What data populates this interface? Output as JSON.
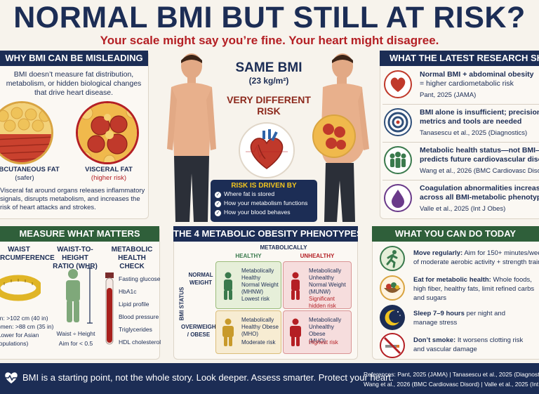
{
  "header": {
    "title": "NORMAL BMI BUT STILL AT RISK?",
    "subtitle": "Your scale might say you’re fine. Your heart might disagree."
  },
  "why_bmi": {
    "heading": "WHY BMI CAN BE MISLEADING",
    "intro": "BMI doesn’t measure fat distribution, metabolism, or hidden biological changes that drive heart disease.",
    "subcutaneous_label": "SUBCUTANEOUS FAT",
    "subcutaneous_note": "(safer)",
    "visceral_label": "VISCERAL FAT",
    "visceral_note": "(higher risk)",
    "footer_text": "Visceral fat around organs releases inflammatory signals, disrupts metabolism, and increases the risk of heart attacks and strokes."
  },
  "center": {
    "same_bmi": "SAME BMI",
    "bmi_value": "(23 kg/m²)",
    "very_different": "VERY DIFFERENT",
    "risk": "RISK",
    "risk_box_title": "RISK IS DRIVEN BY",
    "risk_items": [
      "Where fat is stored",
      "How your metabolism functions",
      "How your blood behaves"
    ]
  },
  "research": {
    "heading": "WHAT THE LATEST RESEARCH SHOWS",
    "items": [
      {
        "title1": "Normal BMI + abdominal obesity",
        "title2": "= higher cardiometabolic risk",
        "cite": "Pant, 2025 (JAMA)",
        "icon": "heart-icon"
      },
      {
        "title1": "BMI alone is insufficient; precision",
        "title2": "metrics and tools are needed",
        "cite": "Tanasescu et al., 2025 (Diagnostics)",
        "icon": "target-icon"
      },
      {
        "title1": "Metabolic health status—not BMI—",
        "title2": "predicts future cardiovascular disease",
        "cite": "Wang et al., 2026 (BMC Cardiovasc Disord)",
        "icon": "people-icon"
      },
      {
        "title1": "Coagulation abnormalities increase risk",
        "title2": "across all BMI-metabolic phenotypes",
        "cite": "Valle et al., 2025 (Int J Obes)",
        "icon": "blood-drop-icon"
      }
    ]
  },
  "measure": {
    "heading": "MEASURE WHAT MATTERS",
    "waist_title1": "WAIST",
    "waist_title2": "CIRCUMFERENCE",
    "waist_men": "Men: >102 cm (40 in)",
    "waist_women": "Women: >88 cm (35 in)",
    "waist_lower": "(Lower for Asian",
    "waist_pop": "populations)",
    "whr_title1": "WAIST-TO-HEIGHT",
    "whr_title2": "RATIO (WHR)",
    "whr_formula": "Waist ÷ Height",
    "whr_aim": "Aim for < 0.5",
    "metabolic_title1": "METABOLIC",
    "metabolic_title2": "HEALTH CHECK",
    "tests": [
      "Fasting glucose",
      "HbA1c",
      "Lipid profile",
      "Blood pressure",
      "Triglycerides",
      "HDL cholesterol"
    ]
  },
  "phenotypes": {
    "heading": "THE 4 METABOLIC OBESITY PHENOTYPES",
    "axis_top": "METABOLICALLY",
    "healthy": "HEALTHY",
    "unhealthy": "UNHEALTHY",
    "bmi_status": "BMI STATUS",
    "normal_weight1": "NORMAL",
    "normal_weight2": "WEIGHT",
    "overweight1": "OVERWEIGHT",
    "overweight2": "/ OBESE",
    "cells": [
      {
        "l1": "Metabolically",
        "l2": "Healthy",
        "l3": "Normal Weight",
        "abbr": "(MHNW)",
        "r1": "Lowest risk",
        "r2": "",
        "bg": "#e6efd9",
        "border": "#9bbb7a",
        "figure": "#3a7a4d",
        "riskcolor": "#1c2d55"
      },
      {
        "l1": "Metabolically",
        "l2": "Unhealthy",
        "l3": "Normal Weight",
        "abbr": "(MUNW)",
        "r1": "Significant",
        "r2": "hidden risk",
        "bg": "#f6dddd",
        "border": "#d99494",
        "figure": "#b41f24",
        "riskcolor": "#b41f24"
      },
      {
        "l1": "Metabolically",
        "l2": "Healthy Obese",
        "l3": "(MHO)",
        "abbr": "",
        "r1": "Moderate risk",
        "r2": "",
        "bg": "#f7ecd2",
        "border": "#dbbd7a",
        "figure": "#c89a2b",
        "riskcolor": "#1c2d55"
      },
      {
        "l1": "Metabolically",
        "l2": "Unhealthy Obese",
        "l3": "(MUO)",
        "abbr": "",
        "r1": "Highest risk",
        "r2": "",
        "bg": "#f6dddd",
        "border": "#d99494",
        "figure": "#b41f24",
        "riskcolor": "#b41f24"
      }
    ]
  },
  "actions": {
    "heading": "WHAT YOU CAN DO TODAY",
    "items": [
      {
        "bold": "Move regularly:",
        "rest1": " Aim for 150+ minutes/week",
        "rest2": "of moderate aerobic activity + strength training",
        "icon": "running-icon"
      },
      {
        "bold": "Eat for metabolic health:",
        "rest1": " Whole foods,",
        "rest2": "high fiber, healthy fats, limit refined carbs",
        "rest3": "and sugars",
        "icon": "food-bowl-icon"
      },
      {
        "bold": "Sleep 7–9 hours",
        "rest1": " per night and",
        "rest2": "manage stress",
        "icon": "moon-icon"
      },
      {
        "bold": "Don’t smoke:",
        "rest1": " It worsens clotting risk",
        "rest2": "and vascular damage",
        "icon": "no-smoking-icon"
      }
    ]
  },
  "footer": {
    "main": "BMI is a starting point, not the whole story. Look deeper. Assess smarter. Protect your heart.",
    "refs1": "References: Pant, 2025 (JAMA)  |  Tanasescu et al., 2025 (Diagnostics)",
    "refs2": "Wang et al., 2026 (BMC Cardiovasc Disord)  |  Valle et al., 2025 (Int J Obes)"
  },
  "colors": {
    "navy": "#1c2d55",
    "red": "#b41f24",
    "green": "#2f5f3a",
    "cream": "#f7f3ec"
  }
}
